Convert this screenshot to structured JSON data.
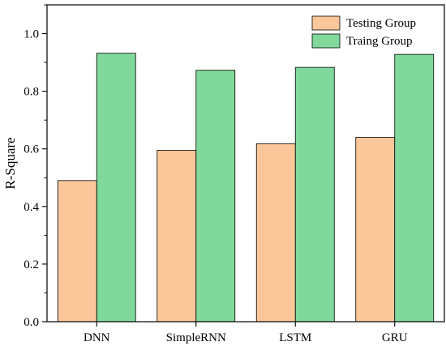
{
  "chart_data": {
    "type": "bar",
    "categories": [
      "DNN",
      "SimpleRNN",
      "LSTM",
      "GRU"
    ],
    "series": [
      {
        "name": "Testing Group",
        "values": [
          0.49,
          0.595,
          0.618,
          0.64
        ],
        "color": "#fbc79a"
      },
      {
        "name": "Traing Group",
        "values": [
          0.932,
          0.873,
          0.883,
          0.928
        ],
        "color": "#80d99b"
      }
    ],
    "title": "",
    "xlabel": "",
    "ylabel": "R-Square",
    "ylim": [
      0,
      1.1
    ],
    "yticks": [
      "0.0",
      "0.2",
      "0.4",
      "0.6",
      "0.8",
      "1.0"
    ],
    "grid": false,
    "legend_position": "top-right"
  }
}
